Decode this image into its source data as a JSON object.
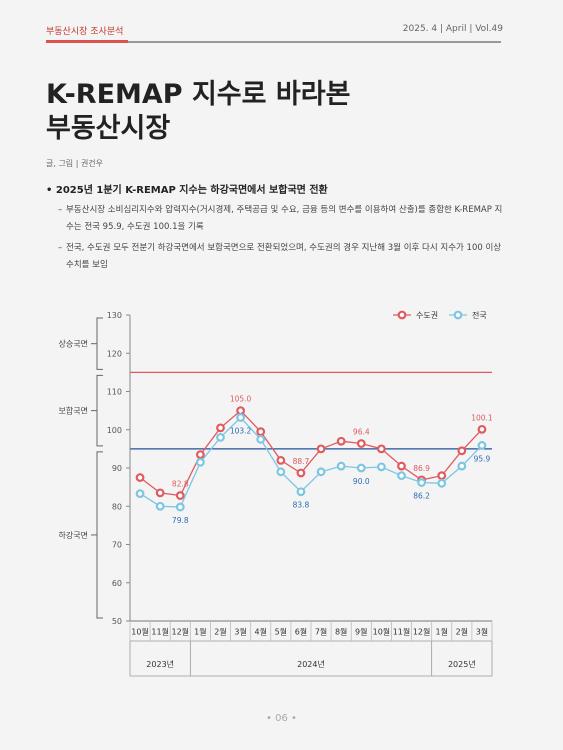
{
  "header": {
    "section": "부동산시장 조사분석",
    "issue": "2025. 4 | April | Vol.49"
  },
  "title": {
    "line1": "K-REMAP 지수로 바라본",
    "line2": "부동산시장"
  },
  "author": "글, 그림 | 권건우",
  "bullet": "2025년 1분기 K-REMAP 지수는 하강국면에서 보합국면 전환",
  "subpoints": [
    "부동산시장 소비심리지수와 압력지수(거시경제, 주택공급 및 수요, 금융 등의 변수를 이용하여 산출)를 종합한 K-REMAP 지수는 전국 95.9, 수도권 100.1을 기록",
    "전국, 수도권 모두 전분기 하강국면에서 보합국면으로 전환되었으며, 수도권의 경우 지난해 3월 이후 다시 지수가 100 이상 수치를 보임"
  ],
  "page_number": "• 06 •",
  "chart_data": {
    "type": "line",
    "x": [
      "10월",
      "11월",
      "12월",
      "1월",
      "2월",
      "3월",
      "4월",
      "5월",
      "6월",
      "7월",
      "8월",
      "9월",
      "10월",
      "11월",
      "12월",
      "1월",
      "2월",
      "3월"
    ],
    "year_groups": [
      {
        "label": "2023년",
        "count": 3
      },
      {
        "label": "2024년",
        "count": 12
      },
      {
        "label": "2025년",
        "count": 3
      }
    ],
    "series": [
      {
        "name": "수도권",
        "color": "#e05a5e",
        "values": [
          87.5,
          83.5,
          82.8,
          93.5,
          100.5,
          105.0,
          99.5,
          92.0,
          88.7,
          95.0,
          97.0,
          96.4,
          95.0,
          90.5,
          86.9,
          88.0,
          94.5,
          100.1
        ]
      },
      {
        "name": "전국",
        "color": "#7cc6e3",
        "values": [
          83.3,
          80.0,
          79.8,
          91.5,
          98.0,
          103.2,
          97.5,
          89.0,
          83.8,
          89.0,
          90.5,
          90.0,
          90.3,
          88.0,
          86.2,
          86.0,
          90.5,
          95.9
        ]
      }
    ],
    "labels": [
      {
        "series": 0,
        "index": 2,
        "text": "82.8",
        "pos": "above"
      },
      {
        "series": 0,
        "index": 5,
        "text": "105.0",
        "pos": "above"
      },
      {
        "series": 0,
        "index": 8,
        "text": "88.7",
        "pos": "above"
      },
      {
        "series": 0,
        "index": 11,
        "text": "96.4",
        "pos": "above"
      },
      {
        "series": 0,
        "index": 14,
        "text": "86.9",
        "pos": "above"
      },
      {
        "series": 0,
        "index": 17,
        "text": "100.1",
        "pos": "above"
      },
      {
        "series": 1,
        "index": 2,
        "text": "79.8",
        "pos": "below"
      },
      {
        "series": 1,
        "index": 5,
        "text": "103.2",
        "pos": "below"
      },
      {
        "series": 1,
        "index": 8,
        "text": "83.8",
        "pos": "below"
      },
      {
        "series": 1,
        "index": 11,
        "text": "90.0",
        "pos": "below"
      },
      {
        "series": 1,
        "index": 14,
        "text": "86.2",
        "pos": "below"
      },
      {
        "series": 1,
        "index": 17,
        "text": "95.9",
        "pos": "below"
      }
    ],
    "ylim": [
      50,
      130
    ],
    "yticks": [
      50,
      60,
      70,
      80,
      90,
      100,
      110,
      120,
      130
    ],
    "reference_lines": [
      {
        "value": 115,
        "color": "#e05a5e"
      },
      {
        "value": 95,
        "color": "#1f4e9c"
      }
    ],
    "phases": [
      {
        "label": "상승국면",
        "from": 115,
        "to": 130
      },
      {
        "label": "보합국면",
        "from": 95,
        "to": 115
      },
      {
        "label": "하강국면",
        "from": 50,
        "to": 95
      }
    ],
    "legend_position": "top-right",
    "grid": false
  }
}
